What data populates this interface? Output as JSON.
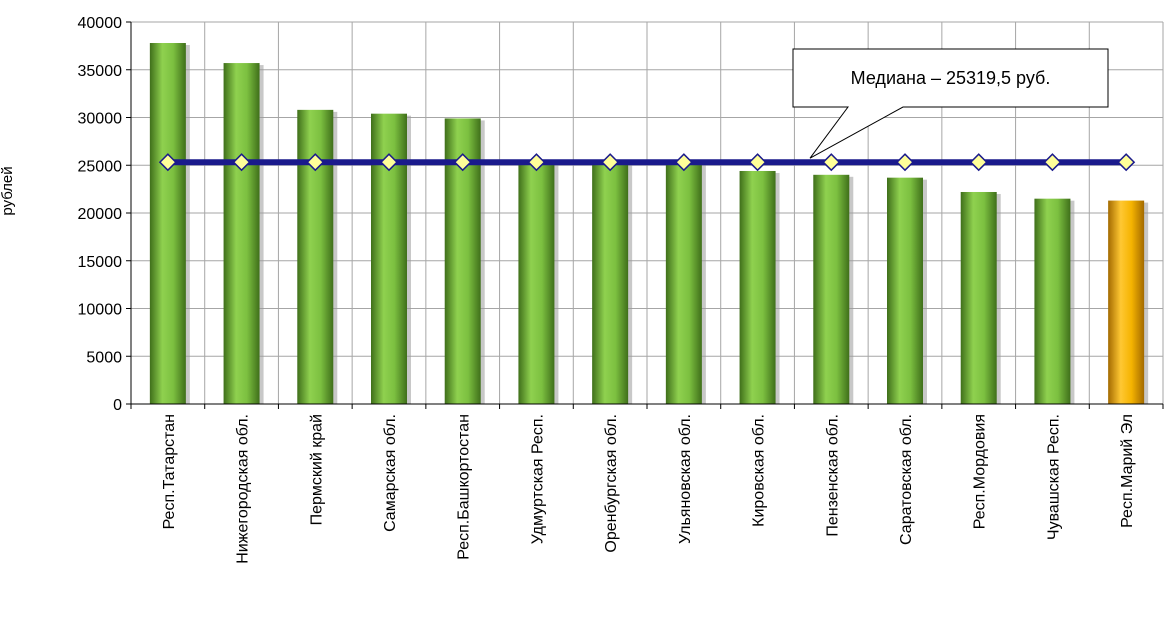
{
  "chart_data": {
    "type": "bar",
    "title": "",
    "xlabel": "",
    "ylabel": "рублей",
    "ylim": [
      0,
      40000
    ],
    "ytick_values": [
      0,
      5000,
      10000,
      15000,
      20000,
      25000,
      30000,
      35000,
      40000
    ],
    "ytick_labels": [
      "0",
      "5000",
      "10000",
      "15000",
      "20000",
      "25000",
      "30000",
      "35000",
      "40000"
    ],
    "grid": true,
    "categories": [
      "Респ.Татарстан",
      "Нижегородская обл.",
      "Пермский край",
      "Самарская обл.",
      "Респ.Башкортостан",
      "Удмуртская Респ.",
      "Оренбургская обл.",
      "Ульяновская обл.",
      "Кировская обл.",
      "Пензенская обл.",
      "Саратовская обл.",
      "Респ.Мордовия",
      "Чувашская Респ.",
      "Респ.Марий Эл"
    ],
    "series": [
      {
        "values": [
          37800,
          35700,
          30800,
          30400,
          29900,
          25400,
          25300,
          25300,
          24400,
          24000,
          23700,
          22200,
          21500,
          21300
        ],
        "colors": [
          "#7cc040",
          "#7cc040",
          "#7cc040",
          "#7cc040",
          "#7cc040",
          "#7cc040",
          "#7cc040",
          "#7cc040",
          "#7cc040",
          "#7cc040",
          "#7cc040",
          "#7cc040",
          "#7cc040",
          "#f5b300"
        ]
      },
      {
        "type": "line",
        "value": 25319.5,
        "color": "#1a1a8c",
        "marker_color": "#ffff99"
      }
    ],
    "annotation": {
      "text": "Медиана – 25319,5 руб."
    }
  }
}
